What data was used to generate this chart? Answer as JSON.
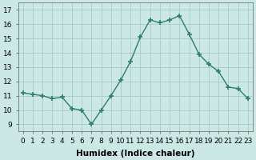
{
  "x": [
    0,
    1,
    2,
    3,
    4,
    5,
    6,
    7,
    8,
    9,
    10,
    11,
    12,
    13,
    14,
    15,
    16,
    17,
    18,
    19,
    20,
    21,
    22,
    23
  ],
  "y": [
    11.2,
    11.1,
    11.0,
    10.8,
    10.9,
    10.1,
    10.0,
    9.0,
    10.0,
    11.0,
    12.1,
    13.4,
    15.1,
    16.3,
    16.1,
    16.3,
    16.6,
    15.3,
    13.9,
    13.2,
    12.7,
    11.6,
    11.5,
    10.8
  ],
  "line_color": "#2e7d6e",
  "marker": "+",
  "marker_size": 4,
  "bg_color": "#cce8e4",
  "grid_color": "#aacfcb",
  "xlabel": "Humidex (Indice chaleur)",
  "xlim": [
    -0.5,
    23.5
  ],
  "ylim": [
    8.5,
    17.5
  ],
  "yticks": [
    9,
    10,
    11,
    12,
    13,
    14,
    15,
    16,
    17
  ],
  "xtick_labels": [
    "0",
    "1",
    "2",
    "3",
    "4",
    "5",
    "6",
    "7",
    "8",
    "9",
    "10",
    "11",
    "12",
    "13",
    "14",
    "15",
    "16",
    "17",
    "18",
    "19",
    "20",
    "21",
    "22",
    "23"
  ],
  "xlabel_fontsize": 7.5,
  "tick_fontsize": 6.5,
  "line_width": 1.0
}
